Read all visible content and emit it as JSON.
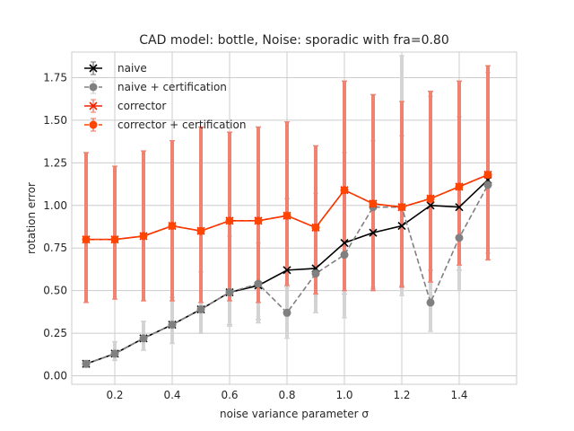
{
  "chart_data": {
    "type": "line",
    "title": "CAD model: bottle, Noise: sporadic with fra=0.80",
    "xlabel": "noise variance parameter σ",
    "ylabel": "rotation error",
    "xlim": [
      0.05,
      1.6
    ],
    "ylim": [
      -0.05,
      1.9
    ],
    "xticks": [
      0.2,
      0.4,
      0.6,
      0.8,
      1.0,
      1.2,
      1.4
    ],
    "xtick_labels": [
      "0.2",
      "0.4",
      "0.6",
      "0.8",
      "1.0",
      "1.2",
      "1.4"
    ],
    "yticks": [
      0.0,
      0.25,
      0.5,
      0.75,
      1.0,
      1.25,
      1.5,
      1.75
    ],
    "ytick_labels": [
      "0.00",
      "0.25",
      "0.50",
      "0.75",
      "1.00",
      "1.25",
      "1.50",
      "1.75"
    ],
    "grid": true,
    "legend_position": "top-left",
    "x": [
      0.1,
      0.2,
      0.3,
      0.4,
      0.5,
      0.6,
      0.7,
      0.8,
      0.9,
      1.0,
      1.1,
      1.2,
      1.3,
      1.4,
      1.5
    ],
    "series": [
      {
        "name": "naive",
        "color": "#000000",
        "marker": "x",
        "dash": "solid",
        "values": [
          0.07,
          0.13,
          0.22,
          0.3,
          0.39,
          0.49,
          0.53,
          0.62,
          0.63,
          0.78,
          0.84,
          0.88,
          1.0,
          0.99,
          1.15
        ],
        "lower": [
          0.05,
          0.09,
          0.15,
          0.19,
          0.25,
          0.3,
          0.33,
          0.35,
          0.37,
          0.48,
          0.51,
          0.53,
          0.62,
          0.62,
          0.72
        ],
        "upper": [
          0.09,
          0.2,
          0.32,
          0.46,
          0.61,
          0.82,
          0.78,
          1.04,
          1.07,
          1.31,
          1.38,
          1.41,
          1.64,
          1.52,
          1.78
        ]
      },
      {
        "name": "naive + certification",
        "color": "#808080",
        "errcolor": "#d9d9d9",
        "marker": "o",
        "dash": "dashed",
        "values": [
          0.07,
          0.13,
          0.22,
          0.3,
          0.39,
          0.49,
          0.54,
          0.37,
          0.6,
          0.71,
          0.99,
          0.99,
          0.43,
          0.81,
          1.12
        ],
        "lower": [
          0.05,
          0.09,
          0.15,
          0.19,
          0.25,
          0.29,
          0.31,
          0.22,
          0.37,
          0.34,
          0.52,
          0.47,
          0.26,
          0.5,
          0.72
        ],
        "upper": [
          0.09,
          0.2,
          0.32,
          0.46,
          0.61,
          0.82,
          0.78,
          0.52,
          1.07,
          1.31,
          1.38,
          1.88,
          1.64,
          1.52,
          1.78
        ]
      },
      {
        "name": "corrector",
        "color": "#ee2200",
        "marker": "x",
        "dash": "solid",
        "values": [
          0.8,
          0.8,
          0.82,
          0.88,
          0.85,
          0.91,
          0.91,
          0.94,
          0.87,
          1.09,
          1.01,
          0.99,
          1.04,
          1.11,
          1.18
        ],
        "lower": [
          0.43,
          0.45,
          0.44,
          0.44,
          0.43,
          0.44,
          0.43,
          0.53,
          0.48,
          0.5,
          0.5,
          0.52,
          0.55,
          0.65,
          0.68
        ],
        "upper": [
          1.31,
          1.23,
          1.32,
          1.38,
          1.46,
          1.43,
          1.46,
          1.49,
          1.35,
          1.73,
          1.65,
          1.61,
          1.67,
          1.73,
          1.82
        ]
      },
      {
        "name": "corrector + certification",
        "color": "#ff4500",
        "marker": "o",
        "dash": "dashed",
        "values": [
          0.8,
          0.8,
          0.82,
          0.88,
          0.85,
          0.91,
          0.91,
          0.94,
          0.87,
          1.09,
          1.01,
          0.99,
          1.04,
          1.11,
          1.18
        ],
        "lower": [
          0.43,
          0.45,
          0.44,
          0.44,
          0.43,
          0.44,
          0.43,
          0.53,
          0.48,
          0.5,
          0.5,
          0.52,
          0.55,
          0.65,
          0.68
        ],
        "upper": [
          1.31,
          1.23,
          1.32,
          1.38,
          1.46,
          1.43,
          1.46,
          1.49,
          1.35,
          1.73,
          1.65,
          1.61,
          1.67,
          1.73,
          1.82
        ]
      }
    ]
  }
}
